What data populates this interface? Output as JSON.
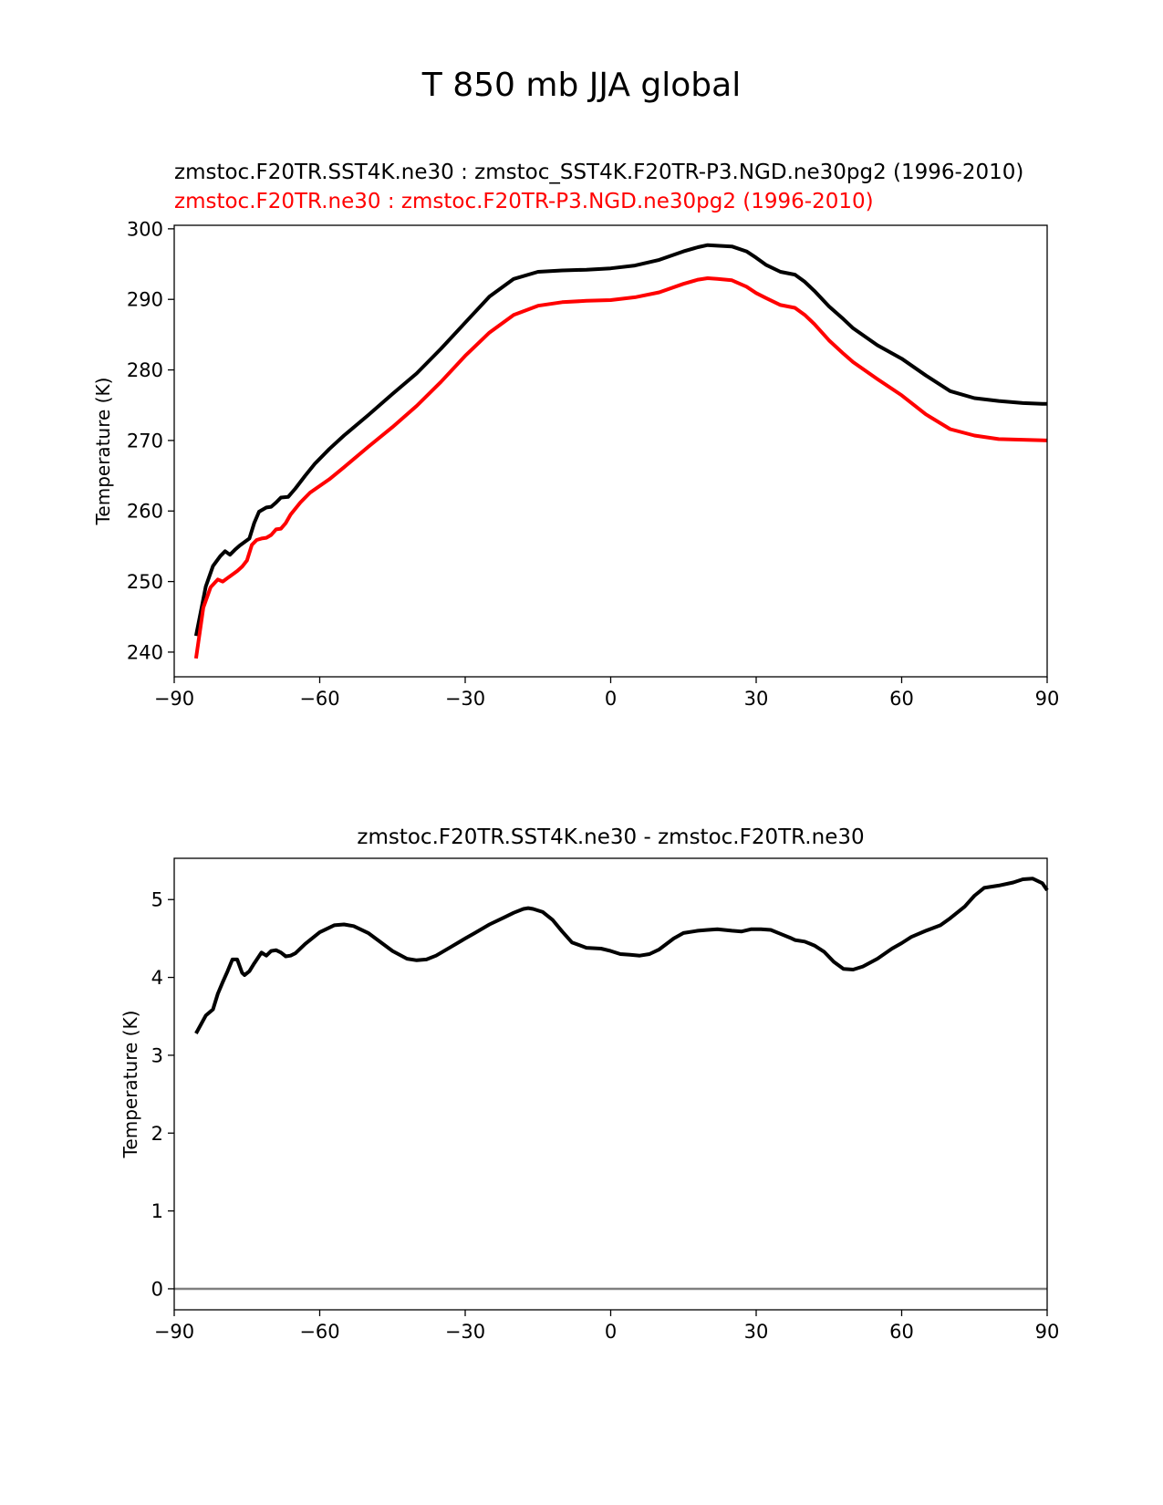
{
  "figure": {
    "title": "T 850 mb JJA global"
  },
  "colors": {
    "test": "#000000",
    "reference": "#ff0000",
    "zero_line": "#808080"
  },
  "chart_data": [
    {
      "type": "line",
      "title_test": "zmstoc.F20TR.SST4K.ne30 : zmstoc_SST4K.F20TR-P3.NGD.ne30pg2 (1996-2010)",
      "title_reference": "zmstoc.F20TR.ne30 : zmstoc.F20TR-P3.NGD.ne30pg2 (1996-2010)",
      "xlabel": "",
      "ylabel": "Temperature (K)",
      "xlim": [
        -90,
        90
      ],
      "ylim": [
        236.5,
        300.5
      ],
      "xticks": [
        -90,
        -60,
        -30,
        0,
        30,
        60,
        90
      ],
      "xtick_labels": [
        "−90",
        "−60",
        "−30",
        "0",
        "30",
        "60",
        "90"
      ],
      "yticks": [
        240,
        250,
        260,
        270,
        280,
        290,
        300
      ],
      "ytick_labels": [
        "240",
        "250",
        "260",
        "270",
        "280",
        "290",
        "300"
      ],
      "series": [
        {
          "name": "zmstoc.F20TR.SST4K.ne30",
          "color": "#000000",
          "x": [
            -85.5,
            -83.5,
            -82,
            -80.5,
            -79.5,
            -78.5,
            -77.5,
            -76.5,
            -75.5,
            -74.5,
            -73.5,
            -72.5,
            -71,
            -70,
            -69,
            -68,
            -66.5,
            -65,
            -63,
            -61,
            -58,
            -55,
            -50,
            -45,
            -40,
            -35,
            -30,
            -25,
            -20,
            -15,
            -10,
            -5,
            0,
            5,
            10,
            15,
            18,
            20,
            22,
            25,
            28,
            30,
            32,
            35,
            38,
            40,
            42,
            45,
            48,
            50,
            55,
            60,
            65,
            70,
            75,
            80,
            85,
            89,
            90
          ],
          "values": [
            242.3,
            249.3,
            252.2,
            253.6,
            254.3,
            253.8,
            254.5,
            255.1,
            255.6,
            256.1,
            258.3,
            259.9,
            260.5,
            260.6,
            261.2,
            261.9,
            262.0,
            263.2,
            265.0,
            266.7,
            268.8,
            270.7,
            273.6,
            276.6,
            279.5,
            283.0,
            286.7,
            290.4,
            292.9,
            293.9,
            294.1,
            294.2,
            294.4,
            294.8,
            295.6,
            296.8,
            297.4,
            297.7,
            297.6,
            297.5,
            296.8,
            295.9,
            294.9,
            293.9,
            293.5,
            292.5,
            291.2,
            289.0,
            287.2,
            285.9,
            283.5,
            281.6,
            279.2,
            277.0,
            276.0,
            275.6,
            275.3,
            275.2,
            275.2
          ]
        },
        {
          "name": "zmstoc.F20TR.ne30",
          "color": "#ff0000",
          "x": [
            -85.5,
            -84,
            -82.5,
            -81,
            -80,
            -79,
            -78,
            -77,
            -76,
            -75,
            -74,
            -73,
            -72,
            -71,
            -70,
            -69,
            -68,
            -67,
            -66,
            -64,
            -62,
            -58,
            -55,
            -50,
            -45,
            -40,
            -35,
            -30,
            -25,
            -20,
            -15,
            -10,
            -5,
            0,
            5,
            10,
            15,
            18,
            20,
            22,
            25,
            28,
            30,
            32,
            35,
            38,
            40,
            42,
            45,
            48,
            50,
            55,
            60,
            65,
            70,
            75,
            80,
            85,
            90
          ],
          "values": [
            239.1,
            246.3,
            249.2,
            250.3,
            250.0,
            250.5,
            251.0,
            251.5,
            252.1,
            253.0,
            255.2,
            255.9,
            256.1,
            256.2,
            256.6,
            257.4,
            257.5,
            258.3,
            259.5,
            261.2,
            262.6,
            264.5,
            266.2,
            269.1,
            271.9,
            274.9,
            278.3,
            282.0,
            285.3,
            287.8,
            289.1,
            289.6,
            289.8,
            289.9,
            290.3,
            291.0,
            292.2,
            292.8,
            293.0,
            292.9,
            292.7,
            291.8,
            290.9,
            290.2,
            289.2,
            288.8,
            287.8,
            286.5,
            284.2,
            282.3,
            281.1,
            278.7,
            276.4,
            273.7,
            271.6,
            270.7,
            270.2,
            270.1,
            270.0
          ]
        }
      ]
    },
    {
      "type": "line",
      "title": "zmstoc.F20TR.SST4K.ne30 - zmstoc.F20TR.ne30",
      "xlabel": "",
      "ylabel": "Temperature (K)",
      "xlim": [
        -90,
        90
      ],
      "ylim": [
        -0.27,
        5.53
      ],
      "xticks": [
        -90,
        -60,
        -30,
        0,
        30,
        60,
        90
      ],
      "xtick_labels": [
        "−90",
        "−60",
        "−30",
        "0",
        "30",
        "60",
        "90"
      ],
      "yticks": [
        0,
        1,
        2,
        3,
        4,
        5
      ],
      "ytick_labels": [
        "0",
        "1",
        "2",
        "3",
        "4",
        "5"
      ],
      "reference_line": {
        "y": 0,
        "color": "#808080"
      },
      "series": [
        {
          "name": "zmstoc.F20TR.SST4K.ne30 - zmstoc.F20TR.ne30",
          "color": "#000000",
          "x": [
            -85.5,
            -83.5,
            -82,
            -81,
            -80,
            -79,
            -78,
            -77,
            -76,
            -75.5,
            -74.5,
            -73.5,
            -72,
            -71,
            -70,
            -69,
            -68,
            -67,
            -66,
            -65,
            -63,
            -60,
            -57,
            -55,
            -53,
            -50,
            -45,
            -42,
            -40,
            -38,
            -36,
            -33,
            -30,
            -28,
            -25,
            -22,
            -20,
            -18,
            -17,
            -16,
            -14,
            -12,
            -10,
            -8,
            -5,
            -2,
            0,
            2,
            4,
            6,
            8,
            10,
            13,
            15,
            18,
            20,
            22,
            25,
            27,
            29,
            31,
            33,
            35,
            37,
            38,
            40,
            42,
            44,
            46,
            48,
            50,
            52,
            55,
            58,
            60,
            62,
            65,
            68,
            70,
            73,
            75,
            77,
            80,
            83,
            85,
            87,
            89,
            90
          ],
          "values": [
            3.28,
            3.51,
            3.59,
            3.79,
            3.94,
            4.08,
            4.23,
            4.23,
            4.06,
            4.03,
            4.08,
            4.18,
            4.32,
            4.28,
            4.34,
            4.35,
            4.32,
            4.27,
            4.28,
            4.31,
            4.43,
            4.58,
            4.67,
            4.68,
            4.66,
            4.57,
            4.34,
            4.24,
            4.22,
            4.23,
            4.28,
            4.39,
            4.5,
            4.57,
            4.68,
            4.77,
            4.83,
            4.88,
            4.89,
            4.88,
            4.84,
            4.74,
            4.59,
            4.45,
            4.38,
            4.37,
            4.34,
            4.3,
            4.29,
            4.28,
            4.3,
            4.36,
            4.5,
            4.57,
            4.6,
            4.61,
            4.62,
            4.6,
            4.59,
            4.62,
            4.62,
            4.61,
            4.56,
            4.51,
            4.48,
            4.46,
            4.41,
            4.33,
            4.2,
            4.11,
            4.1,
            4.14,
            4.24,
            4.37,
            4.44,
            4.52,
            4.6,
            4.67,
            4.76,
            4.91,
            5.05,
            5.15,
            5.18,
            5.22,
            5.26,
            5.27,
            5.21,
            5.12
          ]
        }
      ]
    }
  ]
}
